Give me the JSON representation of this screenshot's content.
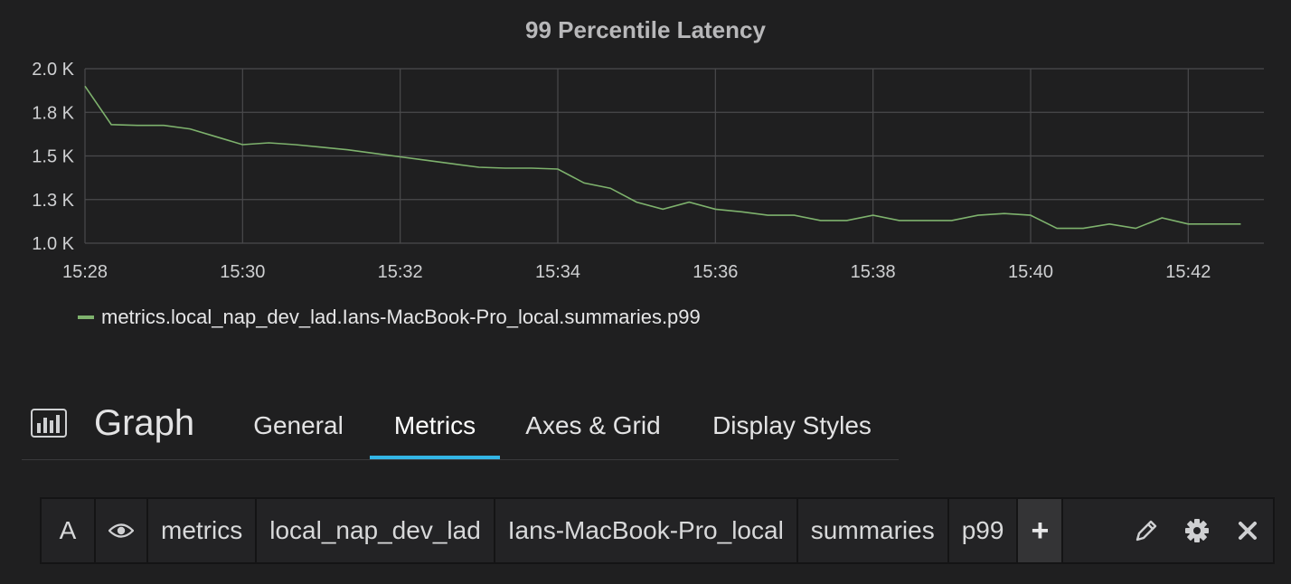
{
  "panel": {
    "title": "99 Percentile Latency",
    "type": "Graph"
  },
  "legend": {
    "series_name": "metrics.local_nap_dev_lad.Ians-MacBook-Pro_local.summaries.p99",
    "color": "#7eb26d"
  },
  "tabs": [
    {
      "label": "General",
      "active": false
    },
    {
      "label": "Metrics",
      "active": true
    },
    {
      "label": "Axes & Grid",
      "active": false
    },
    {
      "label": "Display Styles",
      "active": false
    }
  ],
  "query": {
    "ref_id": "A",
    "visibility_icon": "eye-icon",
    "segments": [
      "metrics",
      "local_nap_dev_lad",
      "Ians-MacBook-Pro_local",
      "summaries",
      "p99"
    ],
    "add_segment_label": "+",
    "actions": [
      "pencil-icon",
      "gear-icon",
      "close-icon"
    ]
  },
  "colors": {
    "accent": "#33b5e5",
    "series": "#7eb26d",
    "background": "#1f1f20"
  },
  "chart_data": {
    "type": "line",
    "title": "99 Percentile Latency",
    "xlabel": "",
    "ylabel": "",
    "x_ticks": [
      "15:28",
      "15:30",
      "15:32",
      "15:34",
      "15:36",
      "15:38",
      "15:40",
      "15:42"
    ],
    "y_ticks": [
      "1.0 K",
      "1.3 K",
      "1.5 K",
      "1.8 K",
      "2.0 K"
    ],
    "xlim": [
      "15:28",
      "15:43"
    ],
    "ylim": [
      1000,
      2000
    ],
    "grid": true,
    "legend_position": "bottom-left",
    "series": [
      {
        "name": "metrics.local_nap_dev_lad.Ians-MacBook-Pro_local.summaries.p99",
        "x": [
          "15:28:00",
          "15:28:20",
          "15:28:40",
          "15:29:00",
          "15:29:20",
          "15:29:40",
          "15:30:00",
          "15:30:20",
          "15:30:40",
          "15:31:00",
          "15:31:20",
          "15:31:40",
          "15:32:00",
          "15:32:20",
          "15:32:40",
          "15:33:00",
          "15:33:20",
          "15:33:40",
          "15:34:00",
          "15:34:20",
          "15:34:40",
          "15:35:00",
          "15:35:20",
          "15:35:40",
          "15:36:00",
          "15:36:20",
          "15:36:40",
          "15:37:00",
          "15:37:20",
          "15:37:40",
          "15:38:00",
          "15:38:20",
          "15:38:40",
          "15:39:00",
          "15:39:20",
          "15:39:40",
          "15:40:00",
          "15:40:20",
          "15:40:40",
          "15:41:00",
          "15:41:20",
          "15:41:40",
          "15:42:00",
          "15:42:20",
          "15:42:40"
        ],
        "values": [
          1900,
          1680,
          1675,
          1675,
          1655,
          1610,
          1565,
          1575,
          1565,
          1550,
          1535,
          1515,
          1495,
          1475,
          1455,
          1435,
          1430,
          1430,
          1425,
          1345,
          1315,
          1235,
          1195,
          1235,
          1195,
          1180,
          1160,
          1160,
          1130,
          1130,
          1160,
          1130,
          1130,
          1130,
          1160,
          1170,
          1160,
          1085,
          1085,
          1110,
          1085,
          1145,
          1110,
          1110,
          1110
        ]
      }
    ]
  }
}
